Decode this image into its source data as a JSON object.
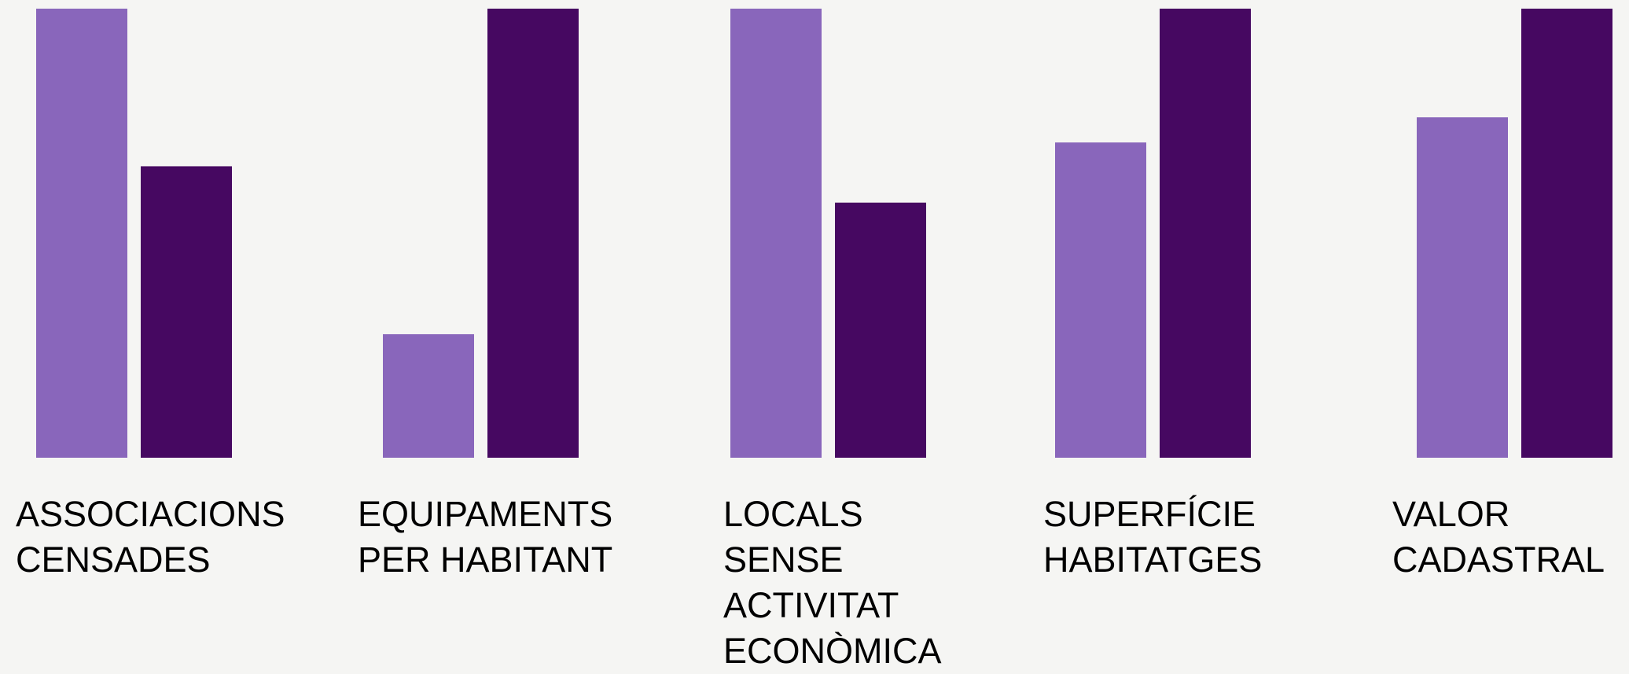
{
  "chart_data": {
    "type": "bar",
    "categories": [
      "ASSOCIACIONS\nCENSADES",
      "EQUIPAMENTS\nPER HABITANT",
      "LOCALS\nSENSE\nACTIVITAT\nECONÒMICA",
      "SUPERFÍCIE\nHABITATGES",
      "VALOR\nCADASTRAL"
    ],
    "series": [
      {
        "values": [
          1.0,
          0.275,
          1.0,
          0.702,
          0.758
        ],
        "color": "#8966bb"
      },
      {
        "values": [
          0.649,
          1.0,
          0.568,
          1.0,
          1.0
        ],
        "color": "#460861"
      }
    ],
    "ylim": [
      0,
      1
    ],
    "grid": false,
    "legend": "none"
  }
}
